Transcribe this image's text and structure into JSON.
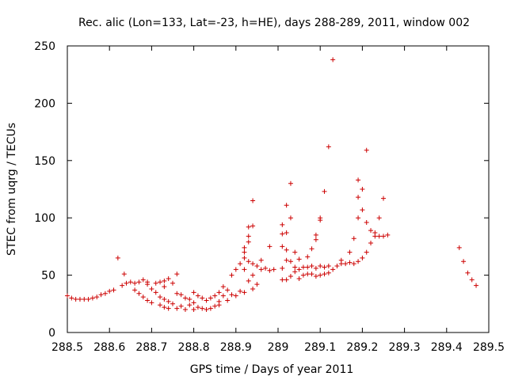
{
  "chart_data": {
    "type": "scatter",
    "title": "Rec. alic (Lon=133, Lat=-23, h=HE), days 288-289, 2011, window 002",
    "xlabel": "GPS time / Days of year 2011",
    "ylabel": "STEC from uqrg / TECUs",
    "xlim": [
      288.5,
      289.5
    ],
    "ylim": [
      0,
      250
    ],
    "xticks": [
      288.5,
      288.6,
      288.7,
      288.8,
      288.9,
      289,
      289.1,
      289.2,
      289.3,
      289.4,
      289.5
    ],
    "xtick_labels": [
      "288.5",
      "288.6",
      "288.7",
      "288.8",
      "288.9",
      "289",
      "289.1",
      "289.2",
      "289.3",
      "289.4",
      "289.5"
    ],
    "yticks": [
      0,
      50,
      100,
      150,
      200,
      250
    ],
    "ytick_labels": [
      "0",
      "50",
      "100",
      "150",
      "200",
      "250"
    ],
    "grid": false,
    "legend": "none",
    "marker": "+",
    "series": [
      {
        "name": "STEC",
        "color": "#cc0000",
        "points": [
          [
            288.5,
            32
          ],
          [
            288.51,
            30
          ],
          [
            288.52,
            29
          ],
          [
            288.53,
            29
          ],
          [
            288.54,
            29
          ],
          [
            288.55,
            29
          ],
          [
            288.56,
            30
          ],
          [
            288.57,
            31
          ],
          [
            288.58,
            33
          ],
          [
            288.59,
            34
          ],
          [
            288.6,
            36
          ],
          [
            288.61,
            37
          ],
          [
            288.62,
            65
          ],
          [
            288.63,
            41
          ],
          [
            288.635,
            51
          ],
          [
            288.64,
            43
          ],
          [
            288.65,
            44
          ],
          [
            288.66,
            43
          ],
          [
            288.66,
            37
          ],
          [
            288.67,
            44
          ],
          [
            288.67,
            34
          ],
          [
            288.68,
            46
          ],
          [
            288.68,
            31
          ],
          [
            288.69,
            44
          ],
          [
            288.69,
            42
          ],
          [
            288.69,
            28
          ],
          [
            288.7,
            38
          ],
          [
            288.7,
            26
          ],
          [
            288.71,
            43
          ],
          [
            288.71,
            35
          ],
          [
            288.72,
            44
          ],
          [
            288.72,
            31
          ],
          [
            288.72,
            24
          ],
          [
            288.73,
            45
          ],
          [
            288.73,
            40
          ],
          [
            288.73,
            29
          ],
          [
            288.73,
            22
          ],
          [
            288.74,
            47
          ],
          [
            288.74,
            27
          ],
          [
            288.74,
            21
          ],
          [
            288.75,
            43
          ],
          [
            288.75,
            25
          ],
          [
            288.76,
            51
          ],
          [
            288.76,
            34
          ],
          [
            288.76,
            21
          ],
          [
            288.77,
            33
          ],
          [
            288.77,
            23
          ],
          [
            288.78,
            30
          ],
          [
            288.78,
            20
          ],
          [
            288.79,
            29
          ],
          [
            288.79,
            24
          ],
          [
            288.8,
            35
          ],
          [
            288.8,
            26
          ],
          [
            288.8,
            20
          ],
          [
            288.81,
            32
          ],
          [
            288.81,
            22
          ],
          [
            288.82,
            30
          ],
          [
            288.82,
            21
          ],
          [
            288.83,
            28
          ],
          [
            288.83,
            20
          ],
          [
            288.84,
            30
          ],
          [
            288.84,
            21
          ],
          [
            288.85,
            32
          ],
          [
            288.85,
            23
          ],
          [
            288.86,
            35
          ],
          [
            288.86,
            27
          ],
          [
            288.86,
            24
          ],
          [
            288.87,
            40
          ],
          [
            288.87,
            32
          ],
          [
            288.88,
            37
          ],
          [
            288.88,
            28
          ],
          [
            288.89,
            50
          ],
          [
            288.89,
            33
          ],
          [
            288.9,
            55
          ],
          [
            288.9,
            32
          ],
          [
            288.91,
            60
          ],
          [
            288.91,
            36
          ],
          [
            288.92,
            74
          ],
          [
            288.92,
            70
          ],
          [
            288.92,
            65
          ],
          [
            288.92,
            55
          ],
          [
            288.92,
            35
          ],
          [
            288.93,
            92
          ],
          [
            288.93,
            84
          ],
          [
            288.93,
            79
          ],
          [
            288.93,
            62
          ],
          [
            288.93,
            45
          ],
          [
            288.94,
            115
          ],
          [
            288.94,
            93
          ],
          [
            288.94,
            60
          ],
          [
            288.94,
            50
          ],
          [
            288.94,
            38
          ],
          [
            288.95,
            58
          ],
          [
            288.95,
            42
          ],
          [
            288.96,
            63
          ],
          [
            288.96,
            55
          ],
          [
            288.97,
            56
          ],
          [
            288.98,
            75
          ],
          [
            288.98,
            54
          ],
          [
            288.99,
            55
          ],
          [
            289.01,
            94
          ],
          [
            289.01,
            86
          ],
          [
            289.01,
            75
          ],
          [
            289.01,
            56
          ],
          [
            289.01,
            46
          ],
          [
            289.02,
            111
          ],
          [
            289.02,
            87
          ],
          [
            289.02,
            72
          ],
          [
            289.02,
            63
          ],
          [
            289.02,
            46
          ],
          [
            289.03,
            130
          ],
          [
            289.03,
            100
          ],
          [
            289.03,
            62
          ],
          [
            289.03,
            49
          ],
          [
            289.04,
            70
          ],
          [
            289.04,
            57
          ],
          [
            289.04,
            53
          ],
          [
            289.05,
            64
          ],
          [
            289.05,
            55
          ],
          [
            289.05,
            47
          ],
          [
            289.06,
            57
          ],
          [
            289.06,
            50
          ],
          [
            289.07,
            66
          ],
          [
            289.07,
            57
          ],
          [
            289.07,
            51
          ],
          [
            289.08,
            73
          ],
          [
            289.08,
            58
          ],
          [
            289.08,
            51
          ],
          [
            289.09,
            81
          ],
          [
            289.09,
            85
          ],
          [
            289.09,
            56
          ],
          [
            289.09,
            49
          ],
          [
            289.1,
            100
          ],
          [
            289.1,
            98
          ],
          [
            289.1,
            58
          ],
          [
            289.1,
            50
          ],
          [
            289.11,
            123
          ],
          [
            289.11,
            57
          ],
          [
            289.11,
            51
          ],
          [
            289.12,
            162
          ],
          [
            289.12,
            58
          ],
          [
            289.12,
            52
          ],
          [
            289.13,
            238
          ],
          [
            289.13,
            55
          ],
          [
            289.14,
            58
          ],
          [
            289.15,
            63
          ],
          [
            289.15,
            60
          ],
          [
            289.16,
            60
          ],
          [
            289.17,
            70
          ],
          [
            289.17,
            61
          ],
          [
            289.18,
            82
          ],
          [
            289.18,
            60
          ],
          [
            289.19,
            133
          ],
          [
            289.19,
            118
          ],
          [
            289.19,
            100
          ],
          [
            289.19,
            62
          ],
          [
            289.2,
            125
          ],
          [
            289.2,
            107
          ],
          [
            289.2,
            65
          ],
          [
            289.21,
            159
          ],
          [
            289.21,
            96
          ],
          [
            289.21,
            70
          ],
          [
            289.22,
            89
          ],
          [
            289.22,
            78
          ],
          [
            289.23,
            87
          ],
          [
            289.23,
            84
          ],
          [
            289.24,
            100
          ],
          [
            289.24,
            84
          ],
          [
            289.25,
            117
          ],
          [
            289.25,
            84
          ],
          [
            289.26,
            85
          ],
          [
            289.43,
            74
          ],
          [
            289.44,
            62
          ],
          [
            289.45,
            52
          ],
          [
            289.46,
            46
          ],
          [
            289.47,
            41
          ]
        ]
      }
    ]
  }
}
